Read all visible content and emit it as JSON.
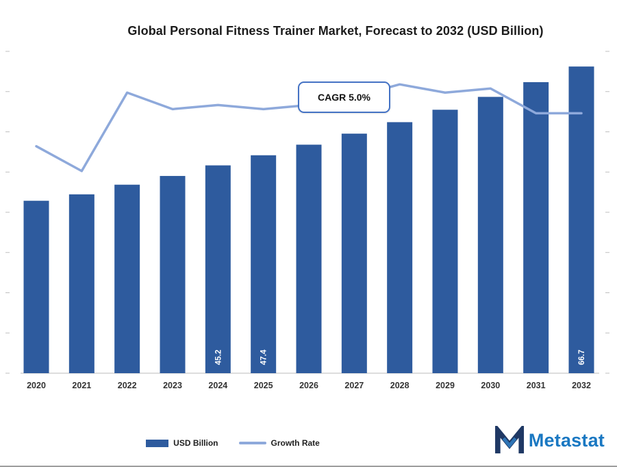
{
  "colors": {
    "bar": "#2e5b9e",
    "line": "#8ea9db",
    "annotation_border": "#4472c4",
    "axis": "#d2d2d2",
    "tick": "#bfbfbf",
    "logo_icon_dark": "#1f3864",
    "logo_icon_light": "#2e75b6",
    "logo_text": "#1a78c2"
  },
  "annotation": {
    "cagr_label": "CAGR 5.0%"
  },
  "logo": {
    "text": "Metastat"
  },
  "chart_data": {
    "type": "bar+line",
    "title": "Global Personal Fitness Trainer Market, Forecast to 2032 (USD Billion)",
    "categories": [
      "2020",
      "2021",
      "2022",
      "2023",
      "2024",
      "2025",
      "2026",
      "2027",
      "2028",
      "2029",
      "2030",
      "2031",
      "2032"
    ],
    "series": [
      {
        "name": "USD Billion",
        "type": "bar",
        "axis": "primary",
        "values": [
          37.5,
          38.9,
          41.0,
          42.9,
          45.2,
          47.4,
          49.7,
          52.1,
          54.6,
          57.3,
          60.1,
          63.3,
          66.7
        ]
      },
      {
        "name": "Growth Rate",
        "type": "line",
        "axis": "secondary",
        "values": [
          4.2,
          3.6,
          5.5,
          5.1,
          5.2,
          5.1,
          5.2,
          5.4,
          5.7,
          5.5,
          5.6,
          5.0,
          5.0
        ]
      }
    ],
    "data_labels": [
      {
        "category": "2024",
        "label": "45.2"
      },
      {
        "category": "2025",
        "label": "47.4"
      },
      {
        "category": "2032",
        "label": "66.7"
      }
    ],
    "xlabel": "",
    "ylabel": "",
    "ylim": [
      0,
      70
    ],
    "y2lim": [
      -1.3,
      6.5
    ],
    "grid": false,
    "legend_position": "bottom",
    "annotation": "CAGR 5.0%"
  }
}
